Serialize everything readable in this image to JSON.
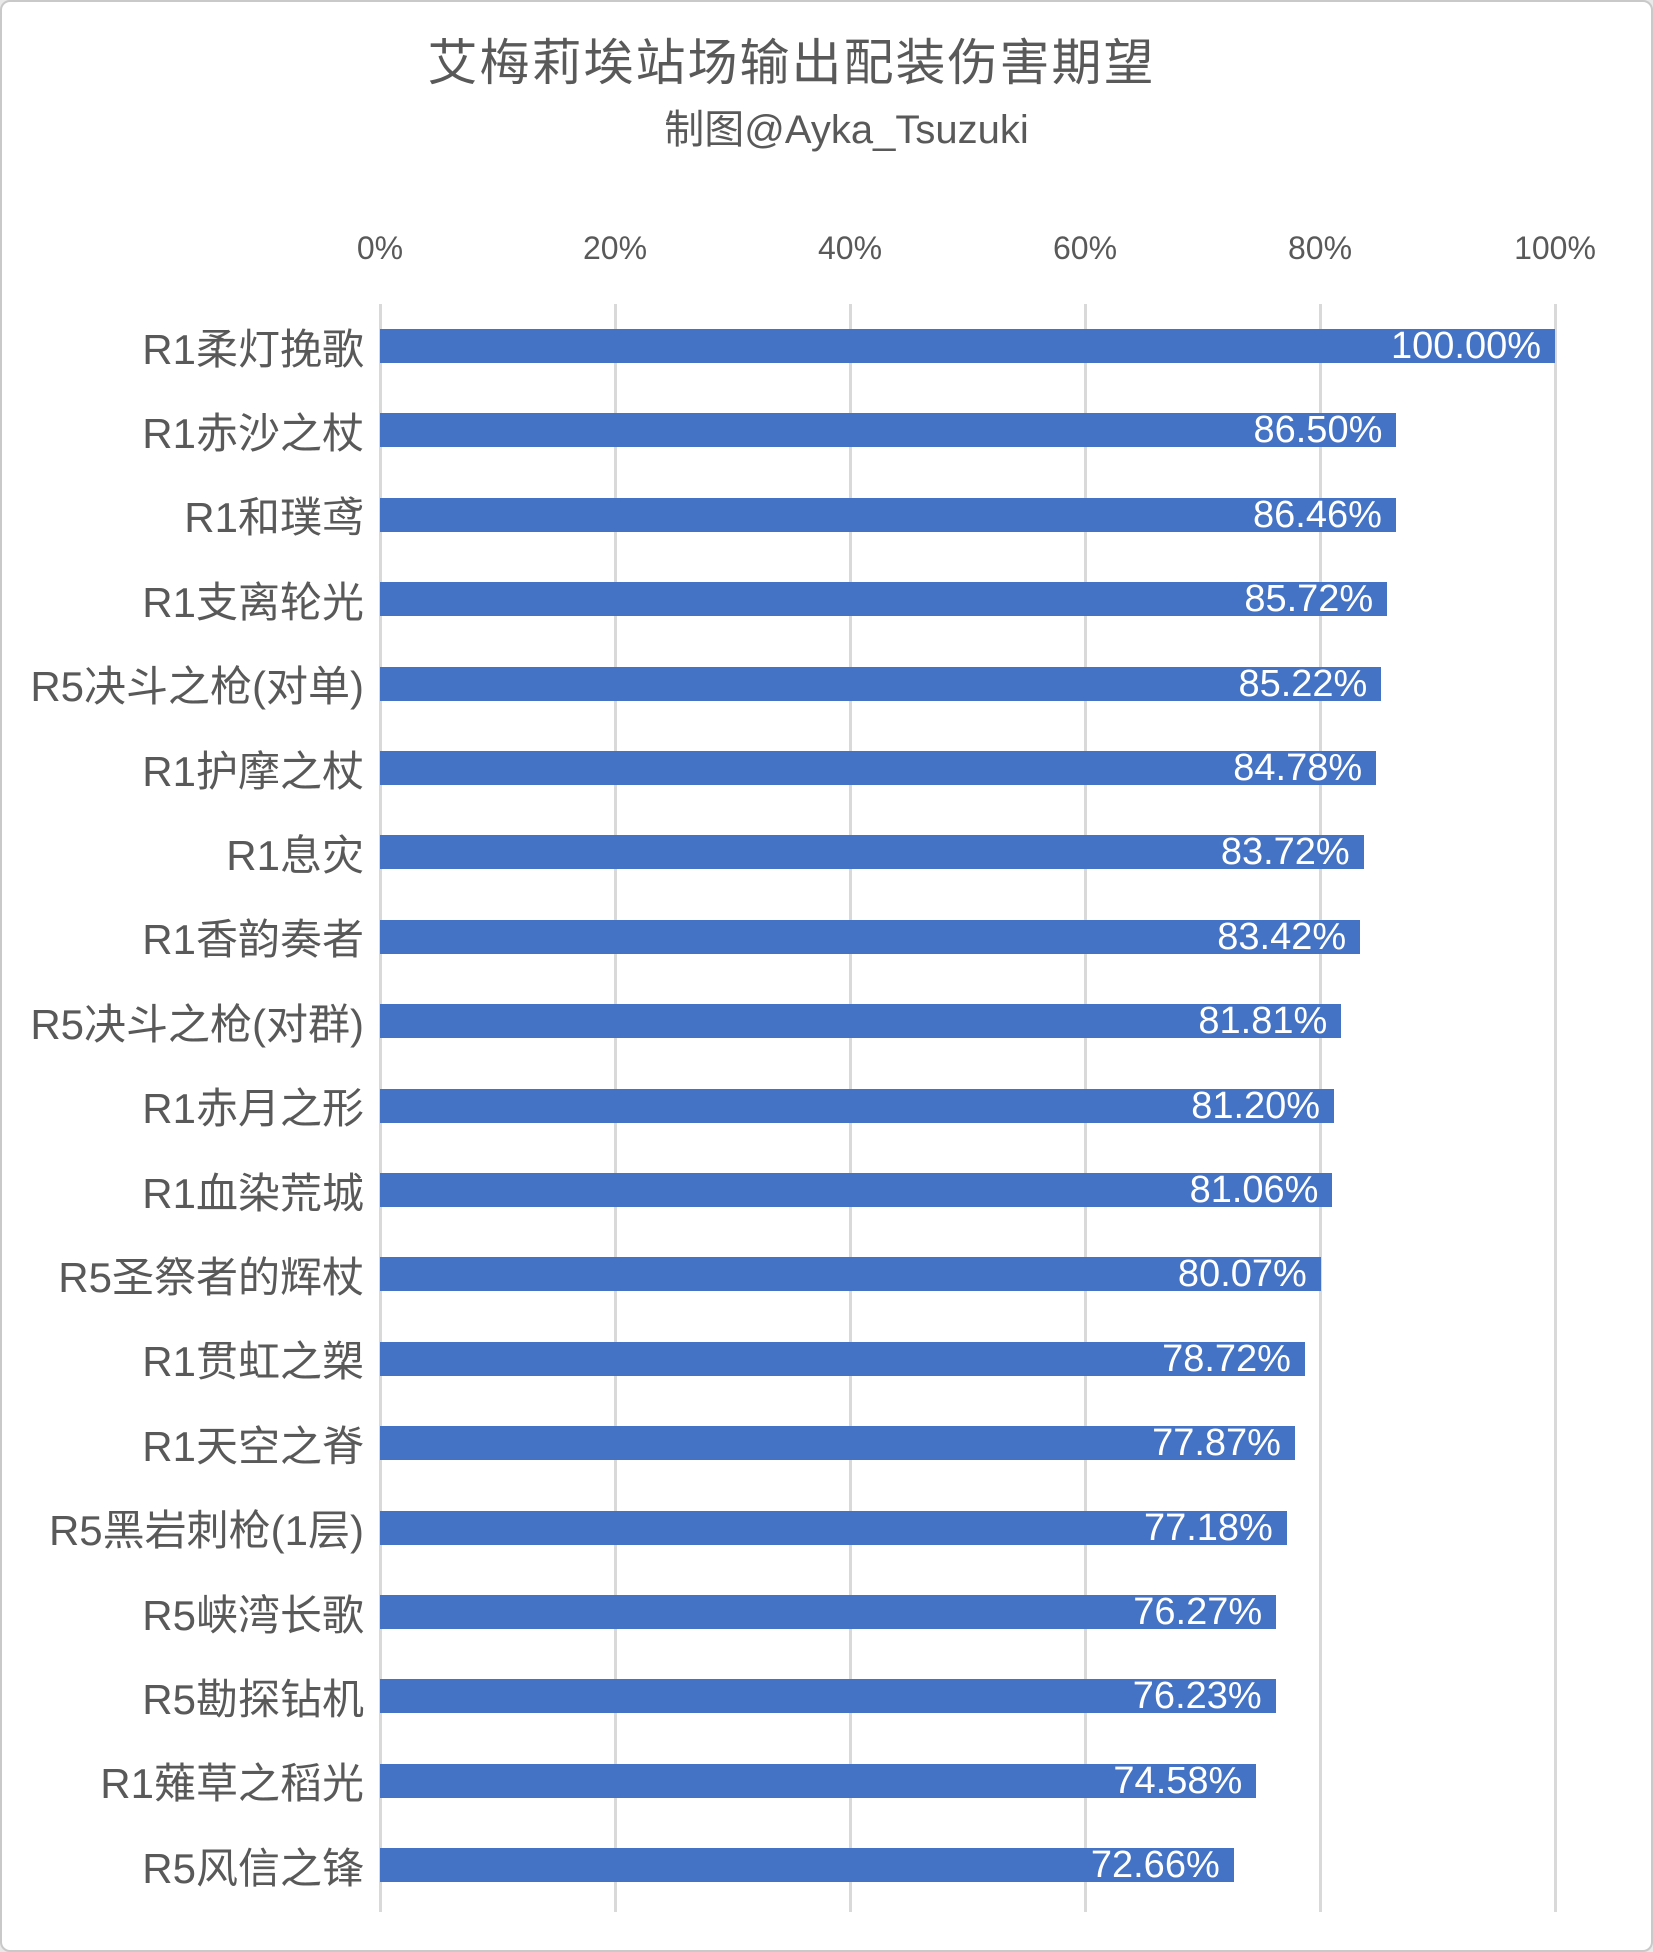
{
  "title": "艾梅莉埃站场输出配装伤害期望",
  "subtitle": "制图@Ayka_Tsuzuki",
  "chart_data": {
    "type": "bar",
    "orientation": "horizontal",
    "title": "艾梅莉埃站场输出配装伤害期望",
    "subtitle": "制图@Ayka_Tsuzuki",
    "categories": [
      "R1柔灯挽歌",
      "R1赤沙之杖",
      "R1和璞鸢",
      "R1支离轮光",
      "R5决斗之枪(对单)",
      "R1护摩之杖",
      "R1息灾",
      "R1香韵奏者",
      "R5决斗之枪(对群)",
      "R1赤月之形",
      "R1血染荒城",
      "R5圣祭者的辉杖",
      "R1贯虹之槊",
      "R1天空之脊",
      "R5黑岩刺枪(1层)",
      "R5峡湾长歌",
      "R5勘探钻机",
      "R1薙草之稻光",
      "R5风信之锋"
    ],
    "values": [
      100.0,
      86.5,
      86.46,
      85.72,
      85.22,
      84.78,
      83.72,
      83.42,
      81.81,
      81.2,
      81.06,
      80.07,
      78.72,
      77.87,
      77.18,
      76.27,
      76.23,
      74.58,
      72.66
    ],
    "value_labels": [
      "100.00%",
      "86.50%",
      "86.46%",
      "85.72%",
      "85.22%",
      "84.78%",
      "83.72%",
      "83.42%",
      "81.81%",
      "81.20%",
      "81.06%",
      "80.07%",
      "78.72%",
      "77.87%",
      "77.18%",
      "76.27%",
      "76.23%",
      "74.58%",
      "72.66%"
    ],
    "x_ticks": [
      "0%",
      "20%",
      "40%",
      "60%",
      "80%",
      "100%"
    ],
    "xlim": [
      0,
      100
    ],
    "grid": true,
    "legend": false,
    "bar_color": "#4472C4",
    "value_label_color": "#FFFFFF",
    "text_color": "#595959",
    "gridline_color": "#D9D9D9"
  }
}
